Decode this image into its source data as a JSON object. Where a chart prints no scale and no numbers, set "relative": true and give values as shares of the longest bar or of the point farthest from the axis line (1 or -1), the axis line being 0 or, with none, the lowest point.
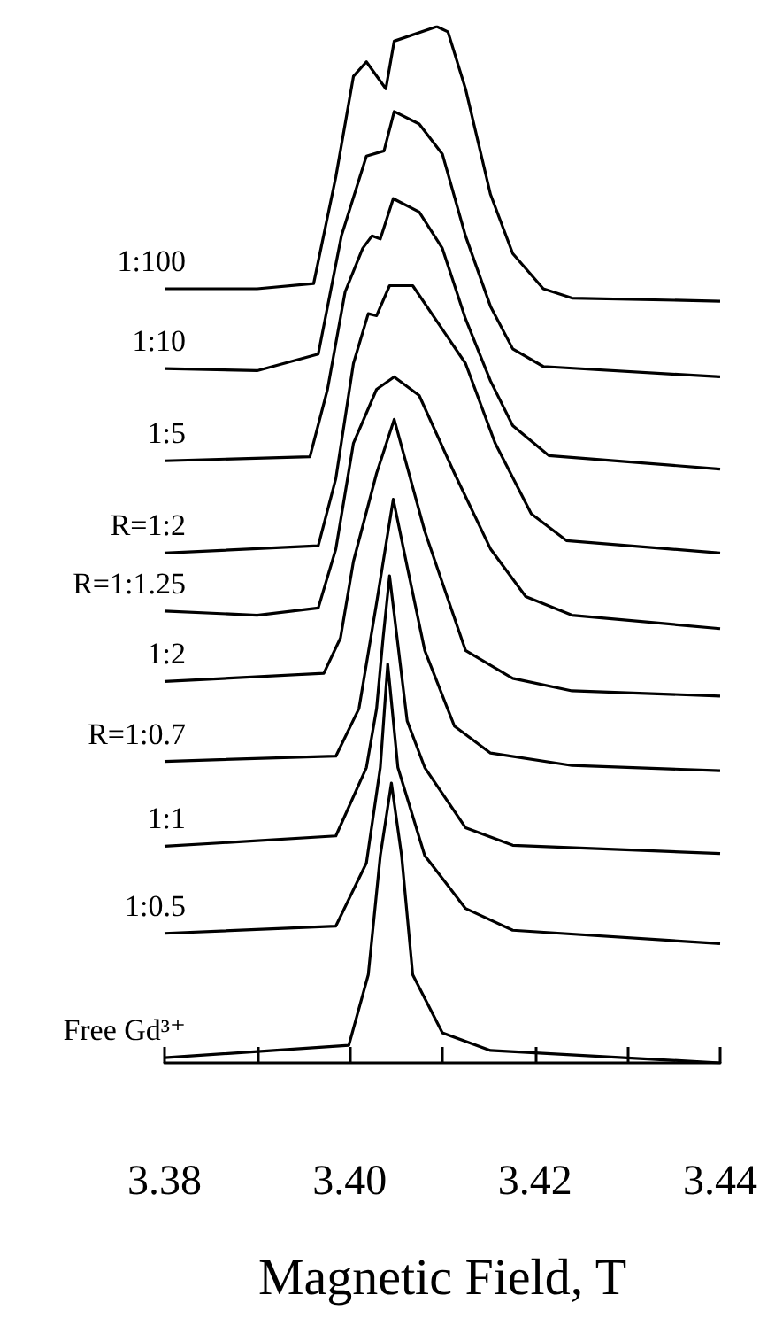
{
  "chart_data": {
    "type": "line",
    "relative": true,
    "xlabel": "Magnetic Field, T",
    "xlim": [
      3.38,
      3.44
    ],
    "xticks": [
      3.38,
      {
        "value": 3.39,
        "label": null
      },
      {
        "value": 3.4,
        "label": "3.40"
      },
      {
        "value": 3.41,
        "label": null
      },
      3.42,
      {
        "value": 3.43,
        "label": null
      },
      3.44
    ],
    "series": [
      {
        "name": "1:100",
        "color": "#000000",
        "x": [
          3.38,
          3.39,
          3.3961,
          3.3985,
          3.4004,
          3.4018,
          3.4039,
          3.4048,
          3.4094,
          3.4106,
          3.4125,
          3.4152,
          3.4176,
          3.4209,
          3.424,
          3.44
        ],
        "values": [
          0.747,
          0.747,
          0.752,
          0.855,
          0.952,
          0.966,
          0.94,
          0.986,
          1,
          0.995,
          0.94,
          0.838,
          0.781,
          0.747,
          0.738,
          0.735
        ]
      },
      {
        "name": "1:10",
        "color": "#000000",
        "x": [
          3.38,
          3.39,
          3.3966,
          3.3991,
          3.4018,
          3.4037,
          3.4048,
          3.4075,
          3.41,
          3.4125,
          3.4152,
          3.4176,
          3.4209,
          3.44
        ],
        "values": [
          0.67,
          0.668,
          0.684,
          0.798,
          0.875,
          0.88,
          0.918,
          0.906,
          0.877,
          0.798,
          0.73,
          0.689,
          0.672,
          0.662
        ]
      },
      {
        "name": "1:5",
        "color": "#000000",
        "x": [
          3.38,
          3.3957,
          3.3976,
          3.3995,
          3.4014,
          3.4024,
          3.4033,
          3.4047,
          3.4075,
          3.41,
          3.4125,
          3.4152,
          3.4176,
          3.4215,
          3.44
        ],
        "values": [
          0.581,
          0.585,
          0.65,
          0.744,
          0.786,
          0.798,
          0.795,
          0.834,
          0.821,
          0.786,
          0.718,
          0.658,
          0.615,
          0.586,
          0.573
        ]
      },
      {
        "name": "R=1:2",
        "color": "#000000",
        "x": [
          3.38,
          3.3966,
          3.3985,
          3.4004,
          3.402,
          3.4029,
          3.4043,
          3.4068,
          3.4125,
          3.4157,
          3.4196,
          3.4234,
          3.44
        ],
        "values": [
          0.492,
          0.499,
          0.564,
          0.675,
          0.723,
          0.721,
          0.75,
          0.75,
          0.675,
          0.598,
          0.53,
          0.504,
          0.492
        ]
      },
      {
        "name": "R=1:1.25",
        "color": "#000000",
        "x": [
          3.38,
          3.39,
          3.3966,
          3.3985,
          3.4004,
          3.4029,
          3.4048,
          3.4075,
          3.4113,
          3.4152,
          3.419,
          3.424,
          3.44
        ],
        "values": [
          0.436,
          0.432,
          0.439,
          0.496,
          0.598,
          0.65,
          0.662,
          0.644,
          0.569,
          0.496,
          0.45,
          0.432,
          0.419
        ]
      },
      {
        "name": "1:2",
        "color": "#000000",
        "x": [
          3.38,
          3.3972,
          3.399,
          3.4004,
          3.4029,
          3.4048,
          3.4081,
          3.4125,
          3.4176,
          3.424,
          3.44
        ],
        "values": [
          0.368,
          0.376,
          0.41,
          0.484,
          0.569,
          0.621,
          0.513,
          0.398,
          0.371,
          0.359,
          0.354
        ]
      },
      {
        "name": "R=1:0.7",
        "color": "#000000",
        "x": [
          3.38,
          3.3985,
          3.401,
          3.4029,
          3.4047,
          3.4062,
          3.4081,
          3.4113,
          3.4152,
          3.424,
          3.44
        ],
        "values": [
          0.291,
          0.296,
          0.342,
          0.444,
          0.544,
          0.479,
          0.398,
          0.325,
          0.299,
          0.287,
          0.282
        ]
      },
      {
        "name": "1:1",
        "color": "#000000",
        "x": [
          3.38,
          3.3985,
          3.4018,
          3.4029,
          3.4036,
          3.4043,
          3.4062,
          3.4081,
          3.4125,
          3.4176,
          3.44
        ],
        "values": [
          0.209,
          0.219,
          0.285,
          0.342,
          0.41,
          0.47,
          0.33,
          0.285,
          0.227,
          0.21,
          0.202
        ]
      },
      {
        "name": "1:0.5",
        "color": "#000000",
        "x": [
          3.38,
          3.3985,
          3.4018,
          3.4033,
          3.4041,
          3.4052,
          3.4081,
          3.4125,
          3.4176,
          3.44
        ],
        "values": [
          0.125,
          0.132,
          0.193,
          0.285,
          0.385,
          0.285,
          0.2,
          0.149,
          0.128,
          0.115
        ]
      },
      {
        "name": "Free Gd³⁺",
        "color": "#000000",
        "x": [
          3.38,
          3.3999,
          3.402,
          3.4033,
          3.4045,
          3.4056,
          3.4068,
          3.41,
          3.4152,
          3.44
        ],
        "values": [
          0.005,
          0.017,
          0.085,
          0.2,
          0.27,
          0.2,
          0.085,
          0.029,
          0.012,
          0
        ]
      }
    ]
  }
}
